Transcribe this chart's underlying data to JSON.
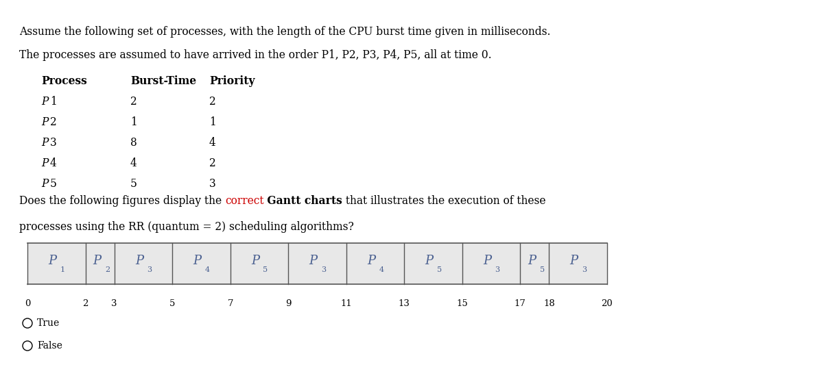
{
  "title_line1": "Assume the following set of processes, with the length of the CPU burst time given in milliseconds.",
  "title_line2": "The processes are assumed to have arrived in the order P1, P2, P3, P4, P5, all at time 0.",
  "table_headers": [
    "Process",
    "Burst-Time",
    "Priority"
  ],
  "table_data": [
    [
      "P1",
      "2",
      "2"
    ],
    [
      "P2",
      "1",
      "1"
    ],
    [
      "P3",
      "8",
      "4"
    ],
    [
      "P4",
      "4",
      "2"
    ],
    [
      "P5",
      "5",
      "3"
    ]
  ],
  "gantt_segments": [
    {
      "label": "P",
      "sub": "1",
      "start": 0,
      "end": 2
    },
    {
      "label": "P",
      "sub": "2",
      "start": 2,
      "end": 3
    },
    {
      "label": "P",
      "sub": "3",
      "start": 3,
      "end": 5
    },
    {
      "label": "P",
      "sub": "4",
      "start": 5,
      "end": 7
    },
    {
      "label": "P",
      "sub": "5",
      "start": 7,
      "end": 9
    },
    {
      "label": "P",
      "sub": "3",
      "start": 9,
      "end": 11
    },
    {
      "label": "P",
      "sub": "4",
      "start": 11,
      "end": 13
    },
    {
      "label": "P",
      "sub": "5",
      "start": 13,
      "end": 15
    },
    {
      "label": "P",
      "sub": "3",
      "start": 15,
      "end": 17
    },
    {
      "label": "P",
      "sub": "5",
      "start": 17,
      "end": 18
    },
    {
      "label": "P",
      "sub": "3",
      "start": 18,
      "end": 20
    }
  ],
  "tick_labels": [
    0,
    2,
    3,
    5,
    7,
    9,
    11,
    13,
    15,
    17,
    18,
    20
  ],
  "gantt_bg_color": "#e8e8e8",
  "gantt_border_color": "#555555",
  "gantt_text_color": "#4a6090",
  "options": [
    "True",
    "False"
  ],
  "bg_color": "#ffffff",
  "text_color": "#000000",
  "red_color": "#cc0000"
}
